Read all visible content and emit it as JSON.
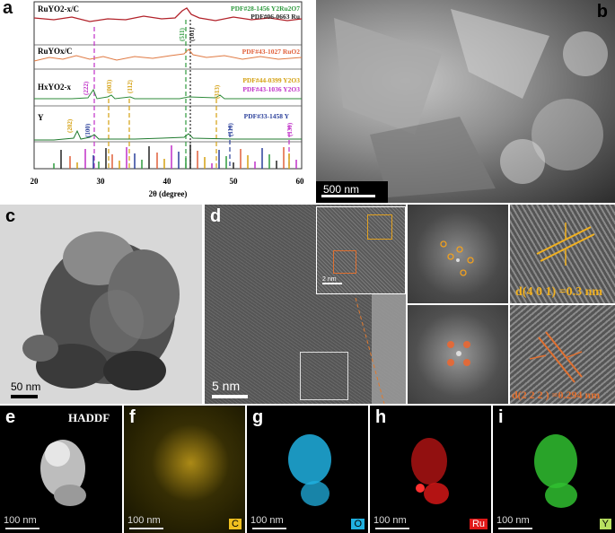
{
  "panels": {
    "a": "a",
    "b": "b",
    "c": "c",
    "d": "d",
    "e": "e",
    "f": "f",
    "g": "g",
    "h": "h",
    "i": "i"
  },
  "panel_a": {
    "traces": {
      "t1": "RuYO2-x/C",
      "t2": "RuYOx/C",
      "t3": "HxYO2-x",
      "t4": "Y"
    },
    "pdf_labels": {
      "p1": "PDF#28-1456 Y2Ru2O7",
      "p2": "PDF#06-0663 Ru",
      "p3": "PDF#43-1027 RuO2",
      "p4": "PDF#44-0399 Y2O3",
      "p5": "PDF#43-1036 Y2O3",
      "p6": "PDF#33-1458 Y"
    },
    "peak_labels": {
      "l511": "(511)",
      "l101": "(101)",
      "l222": "(222)",
      "l003": "(003)",
      "l112": "(112)",
      "l313": "(313)",
      "l202": "(202)",
      "l100": "(100)",
      "l110": "(110)",
      "l130": "(130)"
    },
    "axis_ticks": [
      "20",
      "30",
      "40",
      "50",
      "60"
    ],
    "xlabel": "2θ (degree)",
    "colors": {
      "t1": "#b2222a",
      "t2": "#e07a43",
      "t3": "#2e8b3a",
      "t4": "#1f7a2e",
      "Y2Ru2O7": "#2e9a3e",
      "Ru": "#222222",
      "RuO2": "#e0603a",
      "Y2O3_a": "#d4a010",
      "Y2O3_b": "#c030c8",
      "Y": "#2a3f9a"
    }
  },
  "panel_b": {
    "scale": "500 nm"
  },
  "panel_c": {
    "scale": "50 nm"
  },
  "panel_d": {
    "scale": "5 nm",
    "inset_scale": "2 nm",
    "d1": "d(4 0 1) =0.3 nm",
    "d2": "d(2 2 2 ) =0.294 nm"
  },
  "panel_e": {
    "title": "HADDF",
    "scale": "100 nm"
  },
  "maps": {
    "f": {
      "scale": "100 nm",
      "element": "C",
      "color": "#f0c020"
    },
    "g": {
      "scale": "100 nm",
      "element": "O",
      "color": "#20b0e0"
    },
    "h": {
      "scale": "100 nm",
      "element": "Ru",
      "color": "#e01818"
    },
    "i": {
      "scale": "100 nm",
      "element": "Y",
      "color": "#30c030"
    }
  }
}
